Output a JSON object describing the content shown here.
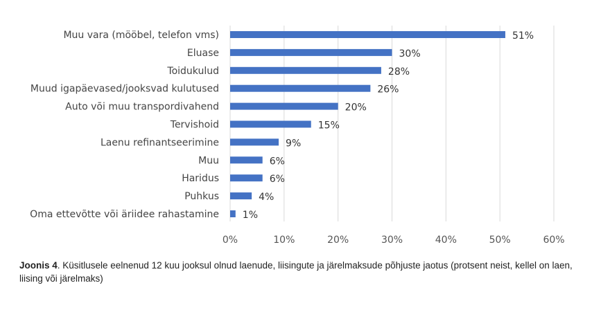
{
  "chart_data": {
    "type": "bar",
    "orientation": "horizontal",
    "categories": [
      "Muu vara (mööbel, telefon vms)",
      "Eluase",
      "Toidukulud",
      "Muud igapäevased/jooksvad kulutused",
      "Auto või muu transpordivahend",
      "Tervishoid",
      "Laenu refinantseerimine",
      "Muu",
      "Haridus",
      "Puhkus",
      "Oma ettevõtte või äriidee rahastamine"
    ],
    "values": [
      51,
      30,
      28,
      26,
      20,
      15,
      9,
      6,
      6,
      4,
      1
    ],
    "value_labels": [
      "51%",
      "30%",
      "28%",
      "26%",
      "20%",
      "15%",
      "9%",
      "6%",
      "6%",
      "4%",
      "1%"
    ],
    "xlim": [
      0,
      60
    ],
    "x_ticks": [
      "0%",
      "10%",
      "20%",
      "30%",
      "40%",
      "50%",
      "60%"
    ],
    "grid": "vertical",
    "bar_color": "#4472C4",
    "grid_color": "#D9D9D9"
  },
  "caption": {
    "figure_label": "Joonis 4",
    "text": ". Küsitlusele eelnenud 12 kuu jooksul olnud laenude, liisingute ja järelmaksude põhjuste jaotus (protsent neist, kellel on laen, liising või järelmaks)"
  }
}
